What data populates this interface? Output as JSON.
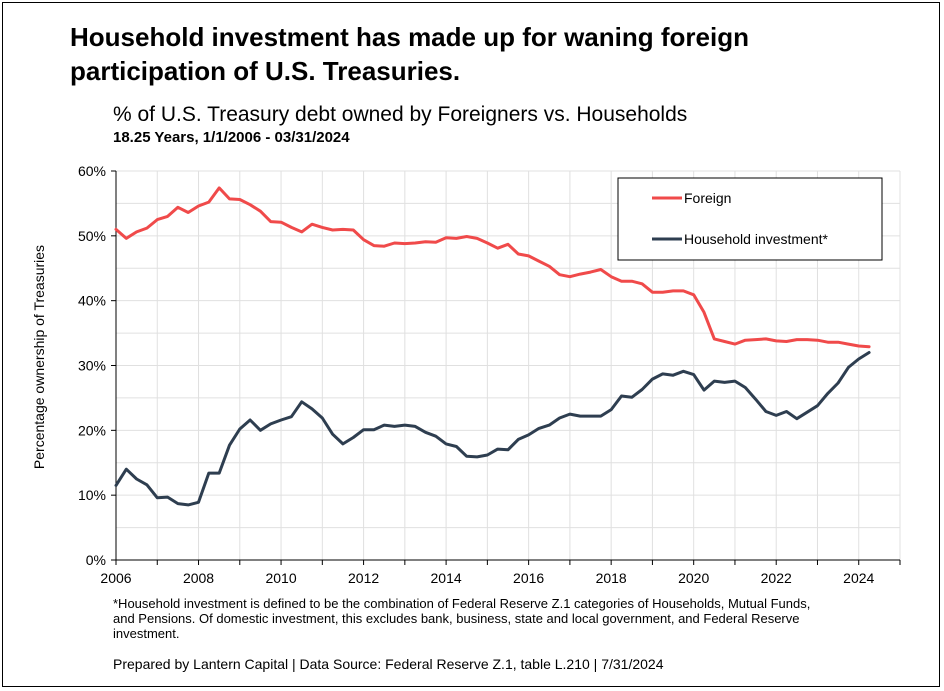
{
  "headline": "Household investment has made up for waning foreign participation of U.S. Treasuries.",
  "footnote": "*Household investment is defined to be the combination of Federal Reserve Z.1 categories of Households, Mutual Funds, and Pensions. Of domestic investment, this excludes bank, business, state and local government, and Federal Reserve investment.",
  "source": "Prepared by Lantern Capital | Data Source: Federal Reserve Z.1, table L.210 | 7/31/2024",
  "colors": {
    "foreign": "#f04a4a",
    "household": "#2e3e50",
    "grid": "#e0e0e0"
  },
  "chart_data": {
    "type": "line",
    "title": "% of U.S. Treasury debt owned by Foreigners vs. Households",
    "subtitle": "18.25 Years, 1/1/2006 - 03/31/2024",
    "xlabel": "",
    "ylabel": "Percentage ownership of Treasuries",
    "xlim": [
      2006,
      2025
    ],
    "ylim": [
      0,
      60
    ],
    "x_ticks": [
      "2006",
      "2008",
      "2010",
      "2012",
      "2014",
      "2016",
      "2018",
      "2020",
      "2022",
      "2024"
    ],
    "y_ticks": [
      "0%",
      "10%",
      "20%",
      "30%",
      "40%",
      "50%",
      "60%"
    ],
    "grid": true,
    "legend_position": "top-right",
    "x": [
      2006.0,
      2006.25,
      2006.5,
      2006.75,
      2007.0,
      2007.25,
      2007.5,
      2007.75,
      2008.0,
      2008.25,
      2008.5,
      2008.75,
      2009.0,
      2009.25,
      2009.5,
      2009.75,
      2010.0,
      2010.25,
      2010.5,
      2010.75,
      2011.0,
      2011.25,
      2011.5,
      2011.75,
      2012.0,
      2012.25,
      2012.5,
      2012.75,
      2013.0,
      2013.25,
      2013.5,
      2013.75,
      2014.0,
      2014.25,
      2014.5,
      2014.75,
      2015.0,
      2015.25,
      2015.5,
      2015.75,
      2016.0,
      2016.25,
      2016.5,
      2016.75,
      2017.0,
      2017.25,
      2017.5,
      2017.75,
      2018.0,
      2018.25,
      2018.5,
      2018.75,
      2019.0,
      2019.25,
      2019.5,
      2019.75,
      2020.0,
      2020.25,
      2020.5,
      2020.75,
      2021.0,
      2021.25,
      2021.5,
      2021.75,
      2022.0,
      2022.25,
      2022.5,
      2022.75,
      2023.0,
      2023.25,
      2023.5,
      2023.75,
      2024.0,
      2024.25
    ],
    "series": [
      {
        "name": "Foreign",
        "values": [
          51.0,
          49.6,
          50.6,
          51.2,
          52.5,
          53.0,
          54.4,
          53.6,
          54.6,
          55.2,
          57.4,
          55.7,
          55.6,
          54.8,
          53.8,
          52.2,
          52.1,
          51.3,
          50.6,
          51.8,
          51.3,
          50.9,
          51.0,
          50.9,
          49.4,
          48.5,
          48.4,
          48.9,
          48.8,
          48.9,
          49.1,
          49.0,
          49.7,
          49.6,
          49.9,
          49.6,
          48.9,
          48.1,
          48.7,
          47.2,
          46.9,
          46.1,
          45.3,
          44.0,
          43.7,
          44.1,
          44.4,
          44.8,
          43.7,
          43.0,
          43.0,
          42.6,
          41.3,
          41.3,
          41.5,
          41.5,
          40.9,
          38.2,
          34.1,
          33.7,
          33.3,
          33.9,
          34.0,
          34.1,
          33.8,
          33.7,
          34.0,
          34.0,
          33.9,
          33.6,
          33.6,
          33.3,
          33.0,
          32.9
        ]
      },
      {
        "name": "Household investment*",
        "values": [
          11.5,
          14.0,
          12.5,
          11.6,
          9.6,
          9.7,
          8.7,
          8.5,
          8.9,
          13.4,
          13.4,
          17.7,
          20.2,
          21.6,
          20.0,
          21.0,
          21.6,
          22.1,
          24.4,
          23.3,
          21.9,
          19.4,
          17.9,
          18.9,
          20.1,
          20.1,
          20.8,
          20.6,
          20.8,
          20.6,
          19.7,
          19.1,
          17.9,
          17.5,
          16.0,
          15.9,
          16.2,
          17.1,
          17.0,
          18.6,
          19.3,
          20.3,
          20.8,
          21.9,
          22.5,
          22.2,
          22.2,
          22.2,
          23.2,
          25.3,
          25.1,
          26.3,
          27.9,
          28.7,
          28.5,
          29.1,
          28.6,
          26.2,
          27.6,
          27.4,
          27.6,
          26.6,
          24.8,
          22.9,
          22.3,
          22.9,
          21.8,
          22.8,
          23.8,
          25.7,
          27.3,
          29.7,
          31.0,
          32.0
        ]
      }
    ]
  }
}
